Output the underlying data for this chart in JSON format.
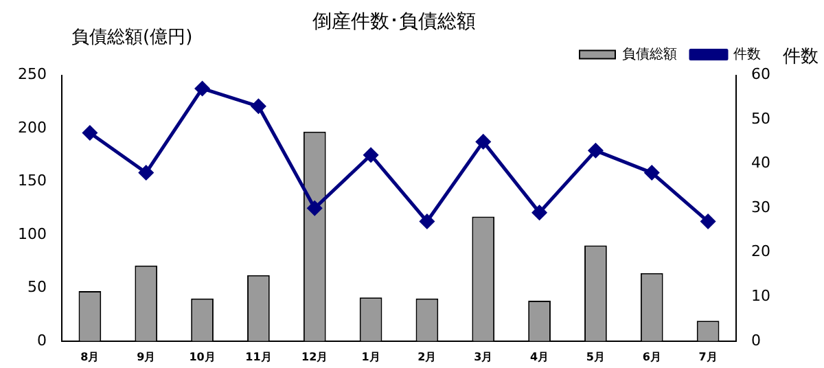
{
  "chart_data": {
    "type": "bar",
    "title": "倒産件数･負債総額",
    "ylabel": "負債総額(億円)",
    "y2label": "件数",
    "categories": [
      "8月",
      "9月",
      "10月",
      "11月",
      "12月",
      "1月",
      "2月",
      "3月",
      "4月",
      "5月",
      "6月",
      "7月"
    ],
    "series": [
      {
        "name": "負債総額",
        "color": "#9a9a9a",
        "values": [
          47,
          71,
          40,
          62,
          197,
          41,
          40,
          117,
          38,
          90,
          64,
          19
        ]
      },
      {
        "name": "件数",
        "type": "line",
        "axis": "y2",
        "color": "#000080",
        "values": [
          47,
          38,
          57,
          53,
          30,
          42,
          27,
          45,
          29,
          43,
          38,
          27
        ]
      }
    ],
    "ylim": [
      0,
      250
    ],
    "yticks": [
      0,
      50,
      100,
      150,
      200,
      250
    ],
    "y2lim": [
      0,
      60
    ],
    "y2ticks": [
      0,
      10,
      20,
      30,
      40,
      50,
      60
    ],
    "grid": false,
    "legend": "top right",
    "marker": "diamond"
  }
}
